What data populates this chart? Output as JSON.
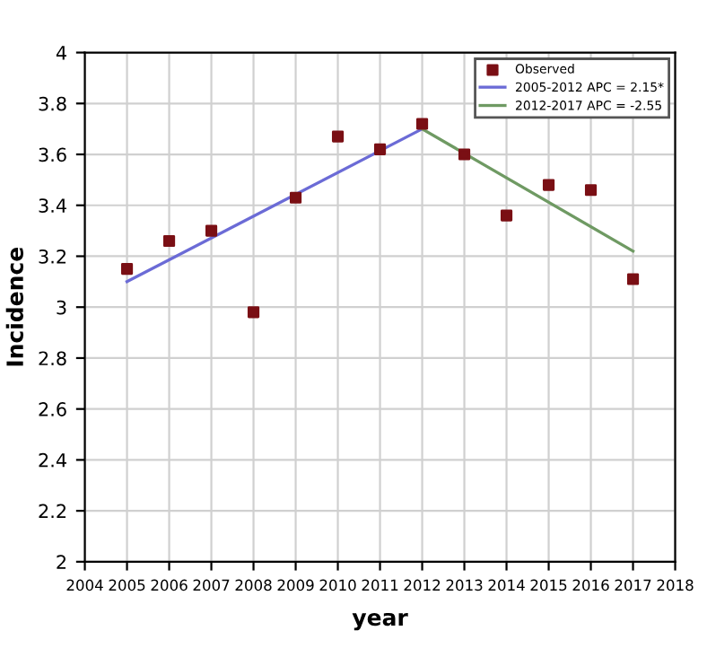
{
  "chart_data": {
    "type": "scatter",
    "xlabel": "year",
    "ylabel": "Incidence",
    "xlim": [
      2004,
      2018
    ],
    "xticks": [
      2004,
      2005,
      2006,
      2007,
      2008,
      2009,
      2010,
      2011,
      2012,
      2013,
      2014,
      2015,
      2016,
      2017,
      2018
    ],
    "ylim": [
      2,
      4
    ],
    "yticks": [
      2,
      2.2,
      2.4,
      2.6,
      2.8,
      3,
      3.2,
      3.4,
      3.6,
      3.8,
      4
    ],
    "grid": true,
    "legend": "top right",
    "series": [
      {
        "name": "Observed",
        "marker": "square",
        "color": "#7a0f14",
        "x": [
          2005,
          2006,
          2007,
          2008,
          2009,
          2010,
          2011,
          2012,
          2013,
          2014,
          2015,
          2016,
          2017
        ],
        "values": [
          3.15,
          3.26,
          3.3,
          2.98,
          3.43,
          3.67,
          3.62,
          3.72,
          3.6,
          3.36,
          3.48,
          3.46,
          3.11
        ]
      },
      {
        "name": "2005-2012 APC = 2.15*",
        "type": "line",
        "color": "#6b6bd6",
        "x": [
          2005,
          2012
        ],
        "values": [
          3.1,
          3.7
        ]
      },
      {
        "name": "2012-2017 APC = -2.55",
        "type": "line",
        "color": "#6f9a63",
        "x": [
          2012,
          2017
        ],
        "values": [
          3.7,
          3.22
        ]
      }
    ]
  }
}
